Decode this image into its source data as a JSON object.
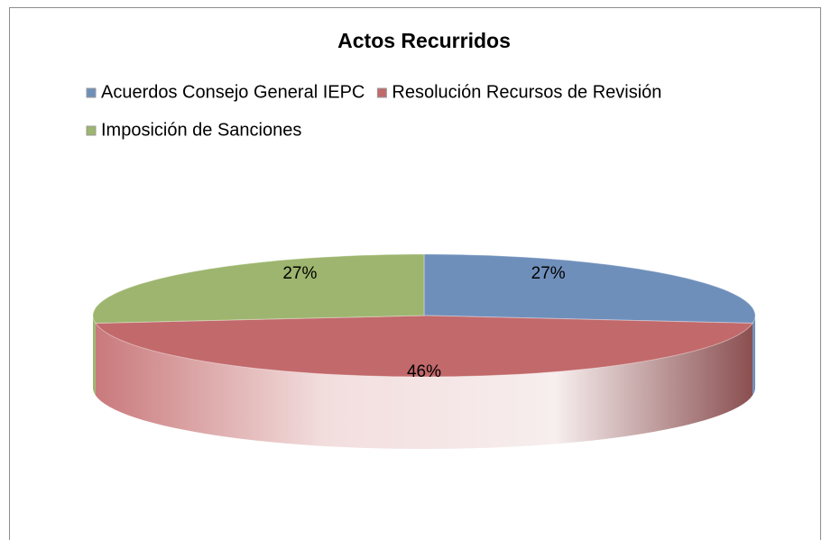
{
  "chart_data": {
    "type": "pie3d",
    "title": "Actos Recurridos",
    "categories": [
      "Acuerdos Consejo General IEPC",
      "Resolución Recursos de Revisión",
      "Imposición de Sanciones"
    ],
    "values": [
      27,
      46,
      27
    ],
    "value_labels": [
      "27%",
      "46%",
      "27%"
    ],
    "colors": [
      "#6f8fbb",
      "#c2696b",
      "#9db56e"
    ],
    "legend": "top"
  }
}
